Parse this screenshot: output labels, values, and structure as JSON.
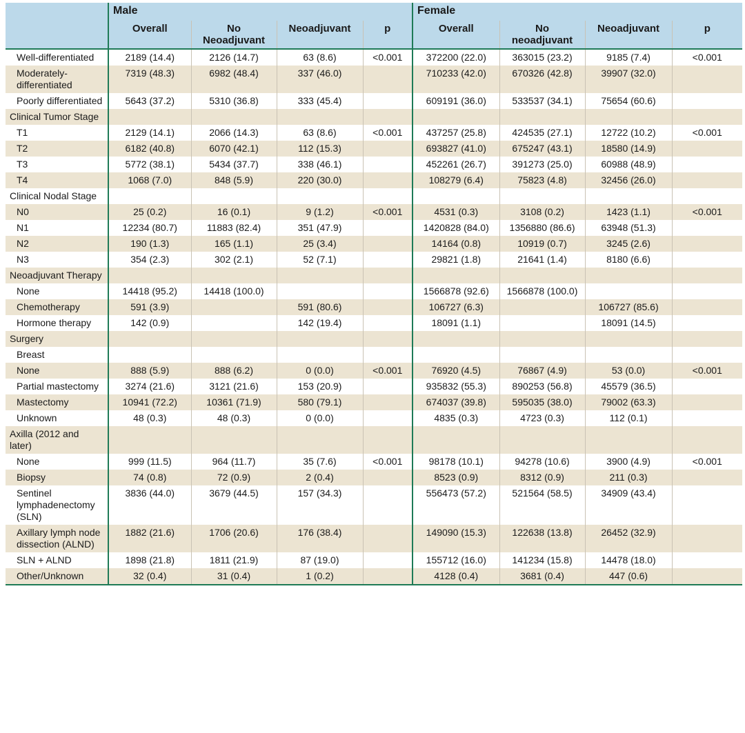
{
  "header": {
    "male_group": "Male",
    "female_group": "Female",
    "male_columns": [
      "Overall",
      "No Neoadjuvant",
      "Neoadjuvant",
      "p"
    ],
    "female_columns": [
      "Overall",
      "No neoadjuvant",
      "Neoadjuvant",
      "p"
    ]
  },
  "rows": [
    {
      "label": "Well-differentiated",
      "indent": true,
      "shade": false,
      "values": [
        "2189 (14.4)",
        "2126 (14.7)",
        "63 (8.6)",
        "<0.001",
        "372200 (22.0)",
        "363015 (23.2)",
        "9185 (7.4)",
        "<0.001"
      ]
    },
    {
      "label": "Moderately-differentiated",
      "indent": true,
      "shade": true,
      "values": [
        "7319 (48.3)",
        "6982 (48.4)",
        "337 (46.0)",
        "",
        "710233 (42.0)",
        "670326 (42.8)",
        "39907 (32.0)",
        ""
      ]
    },
    {
      "label": "Poorly differentiated",
      "indent": true,
      "shade": false,
      "values": [
        "5643 (37.2)",
        "5310 (36.8)",
        "333 (45.4)",
        "",
        "609191 (36.0)",
        "533537 (34.1)",
        "75654 (60.6)",
        ""
      ]
    },
    {
      "label": "Clinical Tumor Stage",
      "indent": false,
      "shade": true,
      "values": [
        "",
        "",
        "",
        "",
        "",
        "",
        "",
        ""
      ]
    },
    {
      "label": "T1",
      "indent": true,
      "shade": false,
      "values": [
        "2129 (14.1)",
        "2066 (14.3)",
        "63 (8.6)",
        "<0.001",
        "437257 (25.8)",
        "424535 (27.1)",
        "12722 (10.2)",
        "<0.001"
      ]
    },
    {
      "label": "T2",
      "indent": true,
      "shade": true,
      "values": [
        "6182 (40.8)",
        "6070 (42.1)",
        "112 (15.3)",
        "",
        "693827 (41.0)",
        "675247 (43.1)",
        "18580 (14.9)",
        ""
      ]
    },
    {
      "label": "T3",
      "indent": true,
      "shade": false,
      "values": [
        "5772 (38.1)",
        "5434 (37.7)",
        "338 (46.1)",
        "",
        "452261 (26.7)",
        "391273 (25.0)",
        "60988 (48.9)",
        ""
      ]
    },
    {
      "label": "T4",
      "indent": true,
      "shade": true,
      "values": [
        "1068 (7.0)",
        "848 (5.9)",
        "220 (30.0)",
        "",
        "108279 (6.4)",
        "75823 (4.8)",
        "32456 (26.0)",
        ""
      ]
    },
    {
      "label": "Clinical Nodal Stage",
      "indent": false,
      "shade": false,
      "values": [
        "",
        "",
        "",
        "",
        "",
        "",
        "",
        ""
      ]
    },
    {
      "label": "N0",
      "indent": true,
      "shade": true,
      "values": [
        "25 (0.2)",
        "16 (0.1)",
        "9 (1.2)",
        "<0.001",
        "4531 (0.3)",
        "3108 (0.2)",
        "1423 (1.1)",
        "<0.001"
      ]
    },
    {
      "label": "N1",
      "indent": true,
      "shade": false,
      "values": [
        "12234 (80.7)",
        "11883 (82.4)",
        "351 (47.9)",
        "",
        "1420828 (84.0)",
        "1356880 (86.6)",
        "63948 (51.3)",
        ""
      ]
    },
    {
      "label": "N2",
      "indent": true,
      "shade": true,
      "values": [
        "190 (1.3)",
        "165 (1.1)",
        "25 (3.4)",
        "",
        "14164 (0.8)",
        "10919 (0.7)",
        "3245 (2.6)",
        ""
      ]
    },
    {
      "label": "N3",
      "indent": true,
      "shade": false,
      "values": [
        "354 (2.3)",
        "302 (2.1)",
        "52 (7.1)",
        "",
        "29821 (1.8)",
        "21641 (1.4)",
        "8180 (6.6)",
        ""
      ]
    },
    {
      "label": "Neoadjuvant Therapy",
      "indent": false,
      "shade": true,
      "values": [
        "",
        "",
        "",
        "",
        "",
        "",
        "",
        ""
      ]
    },
    {
      "label": "None",
      "indent": true,
      "shade": false,
      "values": [
        "14418 (95.2)",
        "14418 (100.0)",
        "",
        "",
        "1566878 (92.6)",
        "1566878 (100.0)",
        "",
        ""
      ]
    },
    {
      "label": "Chemotherapy",
      "indent": true,
      "shade": true,
      "values": [
        "591 (3.9)",
        "",
        "591 (80.6)",
        "",
        "106727 (6.3)",
        "",
        "106727 (85.6)",
        ""
      ]
    },
    {
      "label": "Hormone therapy",
      "indent": true,
      "shade": false,
      "values": [
        "142 (0.9)",
        "",
        "142 (19.4)",
        "",
        "18091 (1.1)",
        "",
        "18091 (14.5)",
        ""
      ]
    },
    {
      "label": "Surgery",
      "indent": false,
      "shade": true,
      "values": [
        "",
        "",
        "",
        "",
        "",
        "",
        "",
        ""
      ]
    },
    {
      "label": "Breast",
      "indent": true,
      "shade": false,
      "values": [
        "",
        "",
        "",
        "",
        "",
        "",
        "",
        ""
      ]
    },
    {
      "label": "None",
      "indent": true,
      "shade": true,
      "values": [
        "888 (5.9)",
        "888 (6.2)",
        "0 (0.0)",
        "<0.001",
        "76920 (4.5)",
        "76867 (4.9)",
        "53 (0.0)",
        "<0.001"
      ]
    },
    {
      "label": "Partial mastectomy",
      "indent": true,
      "shade": false,
      "values": [
        "3274 (21.6)",
        "3121 (21.6)",
        "153 (20.9)",
        "",
        "935832 (55.3)",
        "890253 (56.8)",
        "45579 (36.5)",
        ""
      ]
    },
    {
      "label": "Mastectomy",
      "indent": true,
      "shade": true,
      "values": [
        "10941 (72.2)",
        "10361 (71.9)",
        "580 (79.1)",
        "",
        "674037 (39.8)",
        "595035 (38.0)",
        "79002 (63.3)",
        ""
      ]
    },
    {
      "label": "Unknown",
      "indent": true,
      "shade": false,
      "values": [
        "48 (0.3)",
        "48 (0.3)",
        "0 (0.0)",
        "",
        "4835 (0.3)",
        "4723 (0.3)",
        "112 (0.1)",
        ""
      ]
    },
    {
      "label": "Axilla (2012 and later)",
      "indent": false,
      "shade": true,
      "values": [
        "",
        "",
        "",
        "",
        "",
        "",
        "",
        ""
      ]
    },
    {
      "label": "None",
      "indent": true,
      "shade": false,
      "values": [
        "999 (11.5)",
        "964 (11.7)",
        "35 (7.6)",
        "<0.001",
        "98178 (10.1)",
        "94278 (10.6)",
        "3900 (4.9)",
        "<0.001"
      ]
    },
    {
      "label": "Biopsy",
      "indent": true,
      "shade": true,
      "values": [
        "74 (0.8)",
        "72 (0.9)",
        "2 (0.4)",
        "",
        "8523 (0.9)",
        "8312 (0.9)",
        "211 (0.3)",
        ""
      ]
    },
    {
      "label": "Sentinel lymphadenectomy (SLN)",
      "indent": true,
      "shade": false,
      "values": [
        "3836 (44.0)",
        "3679 (44.5)",
        "157 (34.3)",
        "",
        "556473 (57.2)",
        "521564 (58.5)",
        "34909 (43.4)",
        ""
      ]
    },
    {
      "label": "Axillary lymph node dissection (ALND)",
      "indent": true,
      "shade": true,
      "values": [
        "1882 (21.6)",
        "1706 (20.6)",
        "176 (38.4)",
        "",
        "149090 (15.3)",
        "122638 (13.8)",
        "26452 (32.9)",
        ""
      ]
    },
    {
      "label": "SLN + ALND",
      "indent": true,
      "shade": false,
      "values": [
        "1898 (21.8)",
        "1811 (21.9)",
        "87 (19.0)",
        "",
        "155712 (16.0)",
        "141234 (15.8)",
        "14478 (18.0)",
        ""
      ]
    },
    {
      "label": "Other/Unknown",
      "indent": true,
      "shade": true,
      "values": [
        "32 (0.4)",
        "31 (0.4)",
        "1 (0.2)",
        "",
        "4128 (0.4)",
        "3681 (0.4)",
        "447 (0.6)",
        ""
      ]
    }
  ]
}
